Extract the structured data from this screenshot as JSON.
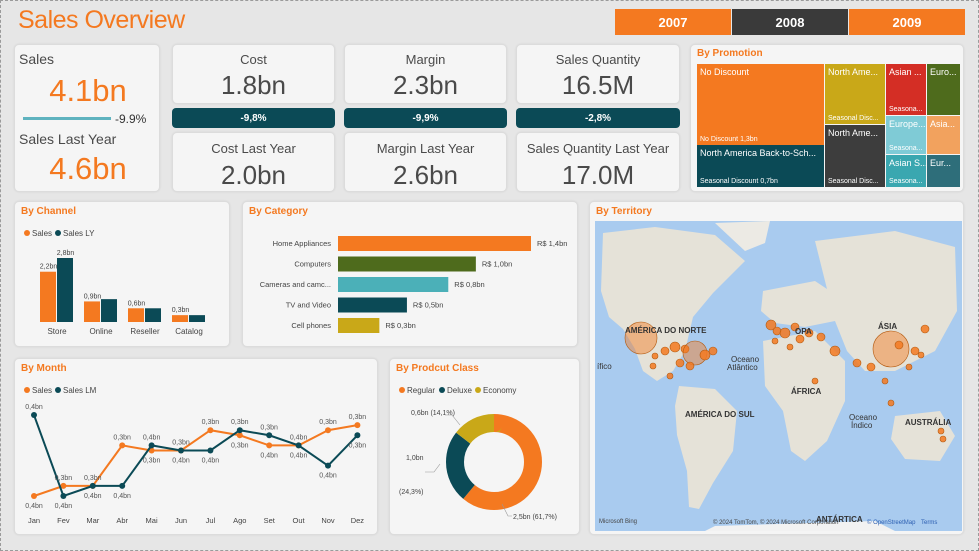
{
  "header": {
    "title": "Sales Overview",
    "years": [
      {
        "label": "2007",
        "selected": false
      },
      {
        "label": "2008",
        "selected": true
      },
      {
        "label": "2009",
        "selected": false
      }
    ]
  },
  "kpis": {
    "sales": {
      "label": "Sales",
      "value": "4.1bn",
      "delta": "-9.9%",
      "ly_label": "Sales Last Year",
      "ly_value": "4.6bn"
    },
    "cost": {
      "label": "Cost",
      "value": "1.8bn",
      "delta": "-9,8%",
      "ly_label": "Cost Last Year",
      "ly_value": "2.0bn"
    },
    "margin": {
      "label": "Margin",
      "value": "2.3bn",
      "delta": "-9,9%",
      "ly_label": "Margin Last Year",
      "ly_value": "2.6bn"
    },
    "quantity": {
      "label": "Sales Quantity",
      "value": "16.5M",
      "delta": "-2,8%",
      "ly_label": "Sales Quantity Last Year",
      "ly_value": "17.0M"
    }
  },
  "promotion": {
    "title": "By Promotion",
    "tiles": [
      {
        "label": "No Discount",
        "sub": "No Discount 1,3bn",
        "color": "#f47920"
      },
      {
        "label": "North America Back-to-Sch...",
        "sub": "Seasonal Discount 0,7bn",
        "color": "#0b4a56"
      },
      {
        "label": "North Ame...",
        "sub": "Seasonal Disc...",
        "color": "#c9a818"
      },
      {
        "label": "North Ame...",
        "sub": "Seasonal Disc...",
        "color": "#3d3d3d"
      },
      {
        "label": "Asian ...",
        "sub": "Seasona...",
        "color": "#d42e25"
      },
      {
        "label": "Euro...",
        "sub": "",
        "color": "#4e6b1c"
      },
      {
        "label": "Europe...",
        "sub": "Seasona...",
        "color": "#7fcbd6"
      },
      {
        "label": "Asia...",
        "sub": "",
        "color": "#f2a25e"
      },
      {
        "label": "Asian S...",
        "sub": "Seasona...",
        "color": "#3aa7b0"
      },
      {
        "label": "Eur...",
        "sub": "",
        "color": "#2e6e7a"
      }
    ]
  },
  "channel": {
    "title": "By Channel",
    "legend": [
      "Sales",
      "Sales LY"
    ],
    "colors": [
      "#f47920",
      "#0b4a56"
    ],
    "chart_data": {
      "type": "bar",
      "categories": [
        "Store",
        "Online",
        "Reseller",
        "Catalog"
      ],
      "series": [
        {
          "name": "Sales",
          "values": [
            2.2,
            0.9,
            0.6,
            0.3
          ],
          "labels": [
            "2,2bn",
            "0,9bn",
            "0,6bn",
            "0,3bn"
          ]
        },
        {
          "name": "Sales LY",
          "values": [
            2.8,
            1.0,
            0.6,
            0.3
          ],
          "labels": [
            "2,8bn",
            "",
            "",
            ""
          ]
        }
      ]
    }
  },
  "category": {
    "title": "By Category",
    "chart_data": {
      "type": "bar",
      "categories": [
        "Home Appliances",
        "Computers",
        "Cameras and camc...",
        "TV and Video",
        "Cell phones"
      ],
      "values": [
        1.4,
        1.0,
        0.8,
        0.5,
        0.3
      ],
      "labels": [
        "R$ 1,4bn",
        "R$ 1,0bn",
        "R$ 0,8bn",
        "R$ 0,5bn",
        "R$ 0,3bn"
      ],
      "colors": [
        "#f47920",
        "#4e6b1c",
        "#4bb0b8",
        "#0b4a56",
        "#c9a818"
      ]
    }
  },
  "territory": {
    "title": "By Territory",
    "labels": [
      {
        "text": "AMÉRICA DO NORTE"
      },
      {
        "text": "Oceano"
      },
      {
        "text": "Atlântico"
      },
      {
        "text": "ÁFRICA"
      },
      {
        "text": "ÁSIA"
      },
      {
        "text": "AMÉRICA DO SUL"
      },
      {
        "text": "Oceano"
      },
      {
        "text": "Índico"
      },
      {
        "text": "AUSTRÁLIA"
      },
      {
        "text": "OPA"
      },
      {
        "text": "ífico"
      },
      {
        "text": "ANTÁRTICA"
      }
    ],
    "attribution": "© 2024 TomTom, © 2024 Microsoft Corporation",
    "osm": "© OpenStreetMap",
    "terms": "Terms",
    "bing": "Microsoft Bing"
  },
  "month": {
    "title": "By Month",
    "legend": [
      "Sales",
      "Sales LM"
    ],
    "colors": [
      "#f47920",
      "#0b4a56"
    ],
    "chart_data": {
      "type": "line",
      "categories": [
        "Jan",
        "Fev",
        "Mar",
        "Abr",
        "Mai",
        "Jun",
        "Jul",
        "Ago",
        "Set",
        "Out",
        "Nov",
        "Dez"
      ],
      "series": [
        {
          "name": "Sales",
          "values": [
            0.3,
            0.32,
            0.32,
            0.4,
            0.39,
            0.39,
            0.43,
            0.42,
            0.4,
            0.4,
            0.43,
            0.44
          ]
        },
        {
          "name": "Sales LM",
          "values": [
            0.46,
            0.3,
            0.32,
            0.32,
            0.4,
            0.39,
            0.39,
            0.43,
            0.42,
            0.4,
            0.36,
            0.42
          ]
        }
      ],
      "point_labels": [
        "0,4bn",
        "0,3bn",
        "0,3bn",
        "0,3bn",
        "0,3bn",
        "0,3bn",
        "0,3bn",
        "0,3bn",
        "0,4bn",
        "0,4bn",
        "0,3bn",
        "0,3bn",
        "0,4bn",
        "0,4bn",
        "0,4bn",
        "0,4bn",
        "0,4bn",
        "0,4bn",
        "0,4bn",
        "0,3bn",
        "0,3bn",
        "0,4bn",
        "0,4bn",
        "0,3bn"
      ]
    }
  },
  "product_class": {
    "title": "By Prodcut Class",
    "legend": [
      "Regular",
      "Deluxe",
      "Economy"
    ],
    "chart_data": {
      "type": "pie",
      "categories": [
        "Regular",
        "Deluxe",
        "Economy"
      ],
      "values": [
        2.5,
        1.0,
        0.6
      ],
      "labels": [
        "2,5bn (61,7%)",
        "1,0bn",
        "(24,3%)",
        "0,6bn (14,1%)"
      ],
      "colors": [
        "#f47920",
        "#0b4a56",
        "#c9a818"
      ]
    }
  }
}
